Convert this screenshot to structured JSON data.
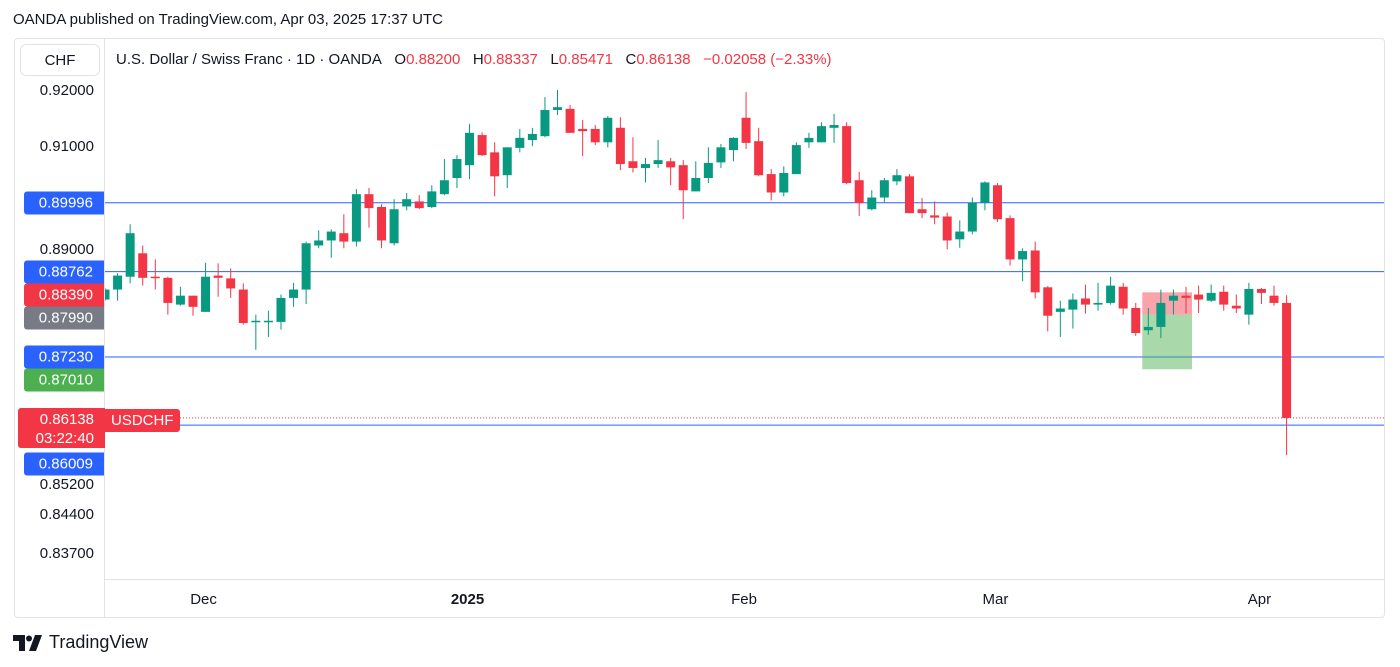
{
  "header": {
    "published": "OANDA published on TradingView.com, Apr 03, 2025 17:37 UTC"
  },
  "currency_button": "CHF",
  "legend": {
    "title": "U.S. Dollar / Swiss Franc · 1D · OANDA",
    "o_label": "O",
    "o": "0.88200",
    "h_label": "H",
    "h": "0.88337",
    "l_label": "L",
    "l": "0.85471",
    "c_label": "C",
    "c": "0.86138",
    "change": "−0.02058 (−2.33%)"
  },
  "footer": {
    "brand": "TradingView"
  },
  "colors": {
    "up": "#089981",
    "down": "#f23645",
    "line": "#2962ff",
    "grey": "#787b86",
    "green_label": "#4caf50"
  },
  "price_labels": [
    {
      "text": "0.89996",
      "price": 0.89996,
      "color": "#2962ff"
    },
    {
      "text": "0.88762",
      "price": 0.88762,
      "color": "#2962ff"
    },
    {
      "text": "0.88390",
      "price": 0.8839,
      "color": "#f23645"
    },
    {
      "text": "0.87990",
      "price": 0.8799,
      "color": "#787b86"
    },
    {
      "text": "0.87230",
      "price": 0.8723,
      "color": "#2962ff"
    },
    {
      "text": "0.87010",
      "price": 0.8701,
      "color": "#4caf50"
    },
    {
      "text": "0.86009",
      "price": 0.86009,
      "color": "#2962ff"
    }
  ],
  "last_price": {
    "price": "0.86138",
    "countdown": "03:22:40",
    "symbol": "USDCHF"
  },
  "chart_data": {
    "type": "candlestick",
    "title": "U.S. Dollar / Swiss Franc · 1D · OANDA",
    "ylim": [
      0.835,
      0.9205
    ],
    "y_ticks": [
      "0.92000",
      "0.91000",
      "0.89000",
      "0.85200",
      "0.84400",
      "0.83700"
    ],
    "x_labels": [
      {
        "text": "Dec",
        "index": 8
      },
      {
        "text": "2025",
        "index": 29,
        "bold": true
      },
      {
        "text": "Feb",
        "index": 51
      },
      {
        "text": "Mar",
        "index": 71
      },
      {
        "text": "Apr",
        "index": 92
      }
    ],
    "horizontal_lines": [
      0.89996,
      0.88762,
      0.8723,
      0.86009
    ],
    "last_price_line": 0.86138,
    "position_tool": {
      "start_index": 83,
      "end_index": 86,
      "entry": 0.8799,
      "top": 0.8839,
      "bottom": 0.8701
    },
    "ohlc": [
      [
        0.8826,
        0.8847,
        0.8824,
        0.8844
      ],
      [
        0.8844,
        0.8873,
        0.8824,
        0.8869
      ],
      [
        0.8867,
        0.8961,
        0.8855,
        0.8945
      ],
      [
        0.8909,
        0.8923,
        0.8851,
        0.8865
      ],
      [
        0.8867,
        0.8898,
        0.8844,
        0.8866
      ],
      [
        0.8865,
        0.8867,
        0.8799,
        0.882
      ],
      [
        0.8817,
        0.8849,
        0.8815,
        0.8833
      ],
      [
        0.8833,
        0.8833,
        0.8797,
        0.8813
      ],
      [
        0.8804,
        0.8892,
        0.8804,
        0.8867
      ],
      [
        0.8869,
        0.8891,
        0.8831,
        0.8865
      ],
      [
        0.8864,
        0.8882,
        0.8829,
        0.8846
      ],
      [
        0.8844,
        0.8855,
        0.8781,
        0.8784
      ],
      [
        0.8787,
        0.8799,
        0.8736,
        0.8788
      ],
      [
        0.8787,
        0.8806,
        0.8759,
        0.8788
      ],
      [
        0.8786,
        0.8835,
        0.8772,
        0.8829
      ],
      [
        0.8829,
        0.8856,
        0.8813,
        0.8844
      ],
      [
        0.8844,
        0.893,
        0.8818,
        0.8927
      ],
      [
        0.8923,
        0.895,
        0.8918,
        0.8932
      ],
      [
        0.8932,
        0.8952,
        0.8901,
        0.8948
      ],
      [
        0.8945,
        0.8979,
        0.8918,
        0.893
      ],
      [
        0.893,
        0.9024,
        0.8921,
        0.9015
      ],
      [
        0.9015,
        0.9026,
        0.8955,
        0.899
      ],
      [
        0.8992,
        0.8997,
        0.8918,
        0.8932
      ],
      [
        0.8927,
        0.9006,
        0.8923,
        0.8988
      ],
      [
        0.8993,
        0.9017,
        0.8986,
        0.9006
      ],
      [
        0.9002,
        0.9013,
        0.8988,
        0.899
      ],
      [
        0.8992,
        0.9031,
        0.899,
        0.902
      ],
      [
        0.9015,
        0.9078,
        0.9013,
        0.904
      ],
      [
        0.9044,
        0.9085,
        0.9026,
        0.9078
      ],
      [
        0.9067,
        0.9141,
        0.9042,
        0.9125
      ],
      [
        0.9121,
        0.9126,
        0.9083,
        0.9085
      ],
      [
        0.909,
        0.9108,
        0.9011,
        0.9047
      ],
      [
        0.9049,
        0.9099,
        0.9026,
        0.9099
      ],
      [
        0.9098,
        0.9132,
        0.909,
        0.9116
      ],
      [
        0.9112,
        0.9134,
        0.9101,
        0.9123
      ],
      [
        0.9119,
        0.9189,
        0.9117,
        0.9166
      ],
      [
        0.9166,
        0.9202,
        0.9157,
        0.9171
      ],
      [
        0.9168,
        0.9175,
        0.9125,
        0.9125
      ],
      [
        0.9132,
        0.9148,
        0.9083,
        0.9128
      ],
      [
        0.9132,
        0.9139,
        0.9103,
        0.9108
      ],
      [
        0.9108,
        0.9155,
        0.9099,
        0.9152
      ],
      [
        0.9134,
        0.9153,
        0.9058,
        0.9069
      ],
      [
        0.9074,
        0.9117,
        0.9054,
        0.9062
      ],
      [
        0.9062,
        0.908,
        0.9036,
        0.9069
      ],
      [
        0.9069,
        0.9112,
        0.9062,
        0.9076
      ],
      [
        0.9074,
        0.908,
        0.9031,
        0.9063
      ],
      [
        0.9067,
        0.9076,
        0.897,
        0.9022
      ],
      [
        0.902,
        0.9074,
        0.902,
        0.9044
      ],
      [
        0.9044,
        0.9099,
        0.9035,
        0.9071
      ],
      [
        0.9072,
        0.9105,
        0.9062,
        0.9099
      ],
      [
        0.9094,
        0.9117,
        0.9074,
        0.9116
      ],
      [
        0.9152,
        0.9198,
        0.9096,
        0.9107
      ],
      [
        0.911,
        0.9134,
        0.9047,
        0.9049
      ],
      [
        0.9051,
        0.906,
        0.9004,
        0.9018
      ],
      [
        0.9018,
        0.9065,
        0.9011,
        0.9053
      ],
      [
        0.9051,
        0.9108,
        0.9051,
        0.9103
      ],
      [
        0.9108,
        0.9125,
        0.9098,
        0.9116
      ],
      [
        0.9108,
        0.9144,
        0.9108,
        0.9137
      ],
      [
        0.9134,
        0.9159,
        0.9107,
        0.9139
      ],
      [
        0.9137,
        0.9144,
        0.9033,
        0.9035
      ],
      [
        0.904,
        0.9055,
        0.8976,
        0.8999
      ],
      [
        0.8988,
        0.9022,
        0.8986,
        0.9009
      ],
      [
        0.9009,
        0.9044,
        0.9,
        0.904
      ],
      [
        0.9038,
        0.906,
        0.9031,
        0.9049
      ],
      [
        0.9047,
        0.9051,
        0.8981,
        0.8981
      ],
      [
        0.8988,
        0.9008,
        0.8972,
        0.8981
      ],
      [
        0.8977,
        0.9002,
        0.8961,
        0.8973
      ],
      [
        0.8975,
        0.8982,
        0.8916,
        0.8932
      ],
      [
        0.8934,
        0.8968,
        0.8919,
        0.8948
      ],
      [
        0.8948,
        0.9009,
        0.8943,
        0.9
      ],
      [
        0.9,
        0.9038,
        0.8986,
        0.9036
      ],
      [
        0.9031,
        0.9035,
        0.8965,
        0.897
      ],
      [
        0.8972,
        0.8977,
        0.8887,
        0.8898
      ],
      [
        0.8898,
        0.8918,
        0.8859,
        0.8913
      ],
      [
        0.8914,
        0.893,
        0.8828,
        0.8839
      ],
      [
        0.8848,
        0.885,
        0.8769,
        0.8797
      ],
      [
        0.8804,
        0.8824,
        0.8759,
        0.881
      ],
      [
        0.8808,
        0.8837,
        0.8774,
        0.8826
      ],
      [
        0.8828,
        0.8853,
        0.8801,
        0.8817
      ],
      [
        0.8817,
        0.8856,
        0.8806,
        0.882
      ],
      [
        0.882,
        0.8867,
        0.8817,
        0.8851
      ],
      [
        0.8849,
        0.8856,
        0.8799,
        0.881
      ],
      [
        0.8811,
        0.882,
        0.8761,
        0.8766
      ],
      [
        0.8771,
        0.8811,
        0.8763,
        0.8777
      ],
      [
        0.8777,
        0.8844,
        0.8757,
        0.882
      ],
      [
        0.8824,
        0.8844,
        0.8799,
        0.8833
      ],
      [
        0.8833,
        0.8849,
        0.8801,
        0.8829
      ],
      [
        0.8835,
        0.8851,
        0.8802,
        0.8826
      ],
      [
        0.8824,
        0.8853,
        0.8822,
        0.8838
      ],
      [
        0.884,
        0.8851,
        0.8806,
        0.8817
      ],
      [
        0.8815,
        0.8835,
        0.8802,
        0.881
      ],
      [
        0.8799,
        0.8856,
        0.8781,
        0.8845
      ],
      [
        0.8845,
        0.8847,
        0.8818,
        0.8838
      ],
      [
        0.8833,
        0.8851,
        0.8815,
        0.882
      ],
      [
        0.882,
        0.88337,
        0.85471,
        0.86138
      ]
    ]
  }
}
